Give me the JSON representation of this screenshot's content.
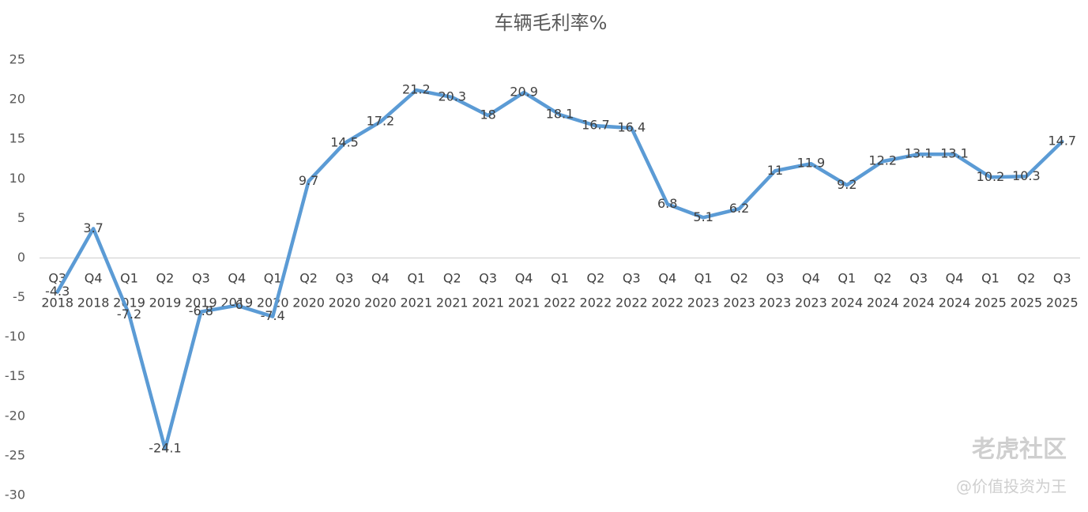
{
  "chart_data": {
    "type": "line",
    "title": "车辆毛利率%",
    "categories": [
      "Q3 2018",
      "Q4 2018",
      "Q1 2019",
      "Q2 2019",
      "Q3 2019",
      "Q4 2019",
      "Q1 2020",
      "Q2 2020",
      "Q3 2020",
      "Q4 2020",
      "Q1 2021",
      "Q2 2021",
      "Q3 2021",
      "Q4 2021",
      "Q1 2022",
      "Q2 2022",
      "Q3 2022",
      "Q4 2022",
      "Q1 2023",
      "Q2 2023",
      "Q3 2023",
      "Q4 2023",
      "Q1 2024",
      "Q2 2024",
      "Q3 2024",
      "Q4 2024",
      "Q1 2025",
      "Q2 2025",
      "Q3 2025"
    ],
    "values": [
      -4.3,
      3.7,
      -7.2,
      -24.1,
      -6.8,
      -6,
      -7.4,
      9.7,
      14.5,
      17.2,
      21.2,
      20.3,
      18,
      20.9,
      18.1,
      16.7,
      16.4,
      6.8,
      5.1,
      6.2,
      11,
      11.9,
      9.2,
      12.2,
      13.1,
      13.1,
      10.2,
      10.3,
      14.7
    ],
    "color": "#5b9bd5",
    "ylim": [
      -30,
      25
    ],
    "yticks": [
      -30,
      -25,
      -20,
      -15,
      -10,
      -5,
      0,
      5,
      10,
      15,
      20,
      25
    ],
    "grid": false,
    "watermark": [
      "老虎社区",
      "@价值投资为王"
    ]
  }
}
